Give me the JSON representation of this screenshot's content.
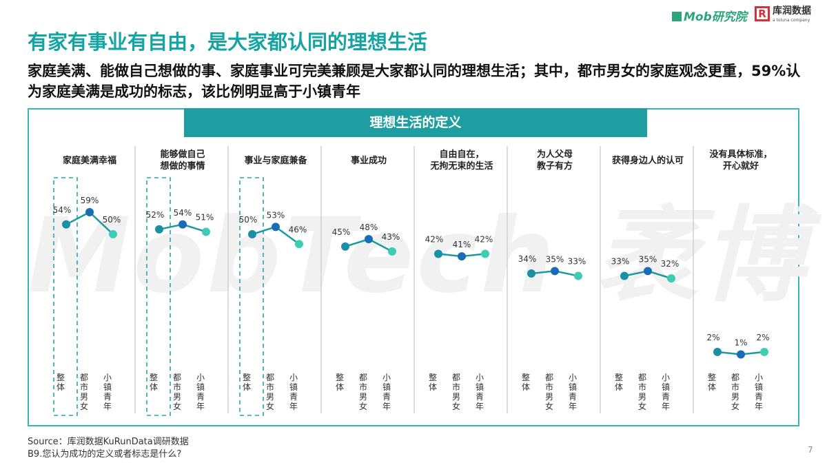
{
  "logos": {
    "mob": "Mob研究院",
    "kurun": "库润数据",
    "kurun_sub": "a toluna company"
  },
  "title": "有家有事业有自由，是大家都认同的理想生活",
  "subtitle": "家庭美满、能做自己想做的事、家庭事业可完美兼顾是大家都认同的理想生活；其中，都市男女的家庭观念更重，59%认为家庭美满是成功的标志，该比例明显高于小镇青年",
  "watermark": "MobTech 袤博",
  "chart_data": {
    "type": "line",
    "title": "理想生活的定义",
    "groups": [
      "整体",
      "都市男女",
      "小镇青年"
    ],
    "colors": {
      "整体": "#1b8fa3",
      "都市男女": "#1a6db5",
      "小镇青年": "#3ccdb3",
      "line": "#1a9aa0"
    },
    "highlight": [
      "家庭美满幸福",
      "能够做自己想做的事情",
      "事业与家庭兼备"
    ],
    "categories": [
      {
        "label": [
          "家庭美满幸福"
        ],
        "values": [
          54,
          59,
          50
        ]
      },
      {
        "label": [
          "能够做自己",
          "想做的事情"
        ],
        "values": [
          52,
          54,
          51
        ]
      },
      {
        "label": [
          "事业与家庭兼备"
        ],
        "values": [
          50,
          53,
          46
        ]
      },
      {
        "label": [
          "事业成功"
        ],
        "values": [
          45,
          48,
          43
        ]
      },
      {
        "label": [
          "自由自在，",
          "无拘无束的生活"
        ],
        "values": [
          42,
          41,
          42
        ]
      },
      {
        "label": [
          "为人父母",
          "教子有方"
        ],
        "values": [
          34,
          35,
          33
        ]
      },
      {
        "label": [
          "获得身边人的认可"
        ],
        "values": [
          33,
          35,
          32
        ]
      },
      {
        "label": [
          "没有具体标准，",
          "开心就好"
        ],
        "values": [
          2,
          1,
          2
        ]
      }
    ]
  },
  "source": "Source：库润数据KuRunData调研数据",
  "question": "B9.您认为成功的定义或者标志是什么?",
  "page": "7"
}
